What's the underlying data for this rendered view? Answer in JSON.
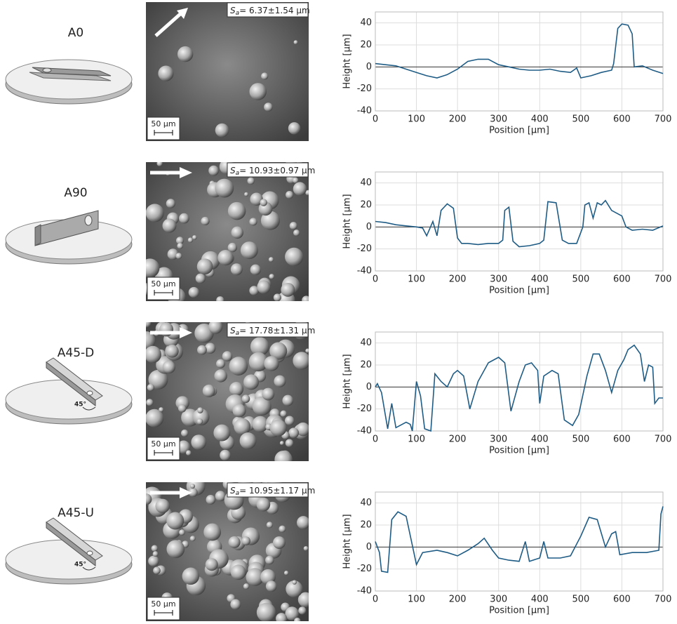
{
  "chart_data": [
    {
      "type": "line",
      "title": "A0",
      "sa": {
        "symbol": "S",
        "sub": "a",
        "value": "= 6.37±1.54 µm"
      },
      "scale_bar": "50 µm",
      "xlabel": "Position [µm]",
      "ylabel": "Height [µm]",
      "grid": true,
      "xlim": [
        0,
        700
      ],
      "ylim": [
        -40,
        50
      ],
      "xticks": [
        0,
        100,
        200,
        300,
        400,
        500,
        600,
        700
      ],
      "yticks": [
        -40,
        -20,
        0,
        20,
        40
      ],
      "x": [
        0,
        25,
        50,
        75,
        100,
        125,
        150,
        175,
        200,
        225,
        250,
        275,
        300,
        325,
        350,
        375,
        400,
        425,
        450,
        475,
        490,
        500,
        525,
        550,
        575,
        580,
        590,
        600,
        615,
        625,
        630,
        650,
        675,
        700
      ],
      "series": [
        {
          "color": "#1f5c85",
          "values": [
            3,
            2,
            1,
            -2,
            -5,
            -8,
            -10,
            -7,
            -2,
            5,
            7,
            7,
            2,
            0,
            -2,
            -3,
            -3,
            -2,
            -4,
            -5,
            -1,
            -10,
            -8,
            -5,
            -3,
            3,
            35,
            39,
            38,
            30,
            0,
            1,
            -3,
            -6
          ]
        }
      ]
    },
    {
      "type": "line",
      "title": "A90",
      "sa": {
        "symbol": "S",
        "sub": "a",
        "value": "= 10.93±0.97 µm"
      },
      "scale_bar": "50 µm",
      "xlabel": "Position [µm]",
      "ylabel": "Height [µm]",
      "grid": true,
      "xlim": [
        0,
        700
      ],
      "ylim": [
        -40,
        50
      ],
      "xticks": [
        0,
        100,
        200,
        300,
        400,
        500,
        600,
        700
      ],
      "yticks": [
        -40,
        -20,
        0,
        20,
        40
      ],
      "x": [
        0,
        25,
        50,
        75,
        100,
        115,
        125,
        140,
        150,
        160,
        175,
        190,
        200,
        210,
        225,
        250,
        275,
        300,
        310,
        315,
        325,
        335,
        350,
        375,
        400,
        410,
        420,
        440,
        455,
        470,
        490,
        505,
        510,
        520,
        530,
        540,
        550,
        560,
        575,
        600,
        610,
        625,
        650,
        675,
        700
      ],
      "series": [
        {
          "color": "#1f5c85",
          "values": [
            5,
            4,
            2,
            1,
            0,
            -1,
            -8,
            5,
            -8,
            15,
            21,
            17,
            -10,
            -15,
            -15,
            -16,
            -15,
            -15,
            -12,
            15,
            18,
            -13,
            -18,
            -17,
            -15,
            -12,
            23,
            22,
            -12,
            -15,
            -15,
            0,
            20,
            22,
            8,
            22,
            20,
            24,
            15,
            10,
            0,
            -3,
            -2,
            -3,
            1
          ]
        }
      ]
    },
    {
      "type": "line",
      "title": "A45-D",
      "sa": {
        "symbol": "S",
        "sub": "a",
        "value": "= 17.78±1.31 µm"
      },
      "scale_bar": "50 µm",
      "angle_label": "45°",
      "xlabel": "Position [µm]",
      "ylabel": "Height [µm]",
      "grid": true,
      "xlim": [
        0,
        700
      ],
      "ylim": [
        -40,
        50
      ],
      "xticks": [
        0,
        100,
        200,
        300,
        400,
        500,
        600,
        700
      ],
      "yticks": [
        -40,
        -20,
        0,
        20,
        40
      ],
      "x": [
        0,
        5,
        15,
        30,
        40,
        50,
        75,
        85,
        90,
        100,
        110,
        120,
        135,
        145,
        160,
        175,
        190,
        200,
        215,
        230,
        250,
        275,
        300,
        315,
        330,
        350,
        365,
        380,
        395,
        400,
        410,
        430,
        445,
        460,
        480,
        495,
        515,
        530,
        545,
        560,
        575,
        590,
        605,
        615,
        630,
        645,
        655,
        665,
        675,
        680,
        690,
        700
      ],
      "series": [
        {
          "color": "#1f5c85",
          "values": [
            0,
            3,
            -5,
            -38,
            -15,
            -37,
            -32,
            -34,
            -40,
            5,
            -8,
            -38,
            -40,
            12,
            5,
            0,
            12,
            15,
            10,
            -20,
            5,
            22,
            27,
            22,
            -22,
            5,
            20,
            22,
            15,
            -15,
            10,
            15,
            12,
            -30,
            -35,
            -25,
            10,
            30,
            30,
            15,
            -5,
            15,
            25,
            34,
            38,
            30,
            5,
            20,
            18,
            -15,
            -10,
            -10
          ]
        }
      ]
    },
    {
      "type": "line",
      "title": "A45-U",
      "sa": {
        "symbol": "S",
        "sub": "a",
        "value": "= 10.95±1.17 µm"
      },
      "scale_bar": "50 µm",
      "angle_label": "45°",
      "xlabel": "Position [µm]",
      "ylabel": "Height [µm]",
      "grid": true,
      "xlim": [
        0,
        700
      ],
      "ylim": [
        -40,
        50
      ],
      "xticks": [
        0,
        100,
        200,
        300,
        400,
        500,
        600,
        700
      ],
      "yticks": [
        -40,
        -20,
        0,
        20,
        40
      ],
      "x": [
        0,
        10,
        15,
        30,
        40,
        55,
        75,
        100,
        115,
        150,
        175,
        200,
        225,
        250,
        265,
        285,
        300,
        325,
        350,
        365,
        375,
        400,
        410,
        420,
        450,
        475,
        500,
        520,
        540,
        560,
        575,
        585,
        595,
        625,
        660,
        690,
        695,
        700
      ],
      "series": [
        {
          "color": "#1f5c85",
          "values": [
            5,
            -5,
            -22,
            -23,
            25,
            32,
            28,
            -16,
            -5,
            -3,
            -5,
            -8,
            -3,
            3,
            8,
            -3,
            -10,
            -12,
            -13,
            5,
            -13,
            -10,
            5,
            -10,
            -10,
            -8,
            10,
            27,
            25,
            0,
            12,
            14,
            -7,
            -5,
            -5,
            -3,
            30,
            37
          ]
        }
      ]
    }
  ]
}
